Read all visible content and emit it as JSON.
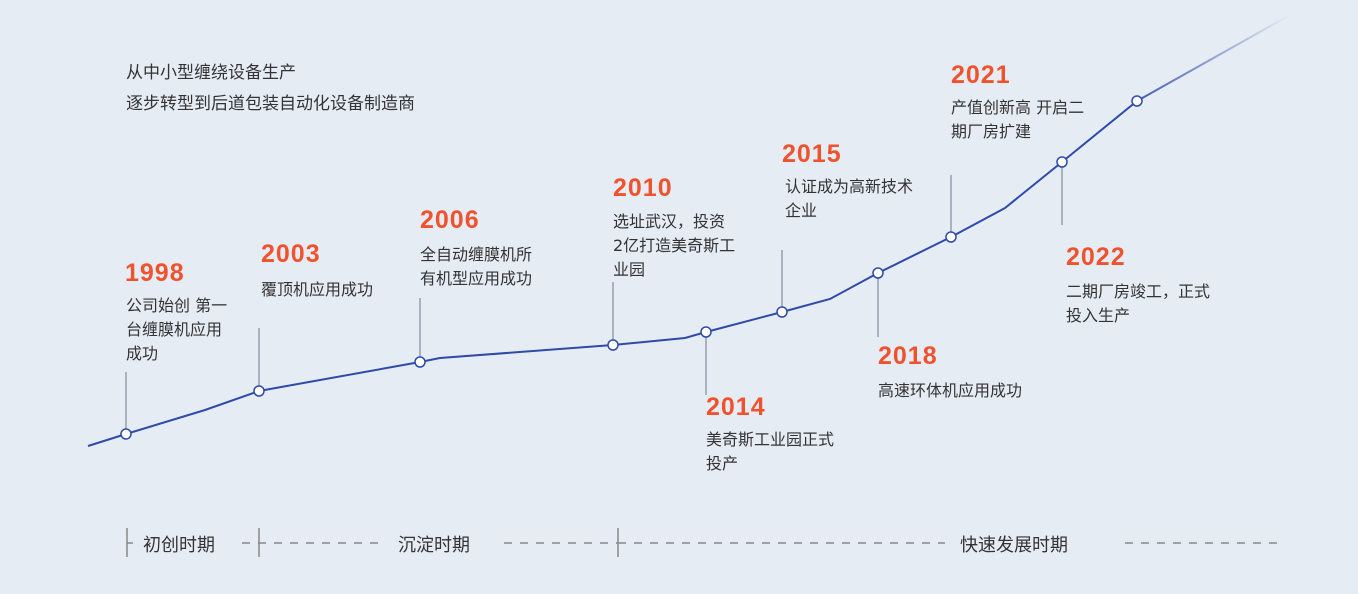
{
  "intro": [
    "从中小型缠绕设备生产",
    "逐步转型到后道包装自动化设备制造商"
  ],
  "milestones": [
    {
      "year": "1998",
      "lines": [
        "公司始创 第一",
        "台缠膜机应用",
        "成功"
      ]
    },
    {
      "year": "2003",
      "lines": [
        "覆顶机应用成功"
      ]
    },
    {
      "year": "2006",
      "lines": [
        "全自动缠膜机所",
        "有机型应用成功"
      ]
    },
    {
      "year": "2010",
      "lines": [
        "选址武汉，投资",
        "2亿打造美奇斯工",
        "业园"
      ]
    },
    {
      "year": "2014",
      "lines": [
        "美奇斯工业园正式",
        "投产"
      ]
    },
    {
      "year": "2015",
      "lines": [
        "认证成为高新技术",
        "企业"
      ]
    },
    {
      "year": "2018",
      "lines": [
        "高速环体机应用成功"
      ]
    },
    {
      "year": "2021",
      "lines": [
        "产值创新高 开启二",
        "期厂房扩建"
      ]
    },
    {
      "year": "2022",
      "lines": [
        "二期厂房竣工，正式",
        "投入生产"
      ]
    }
  ],
  "periods": [
    "初创时期",
    "沉淀时期",
    "快速发展时期"
  ],
  "colors": {
    "background": "#e6ecf4",
    "year": "#f0522e",
    "line": "#2f4aa8",
    "connector": "#a9b2c0"
  }
}
